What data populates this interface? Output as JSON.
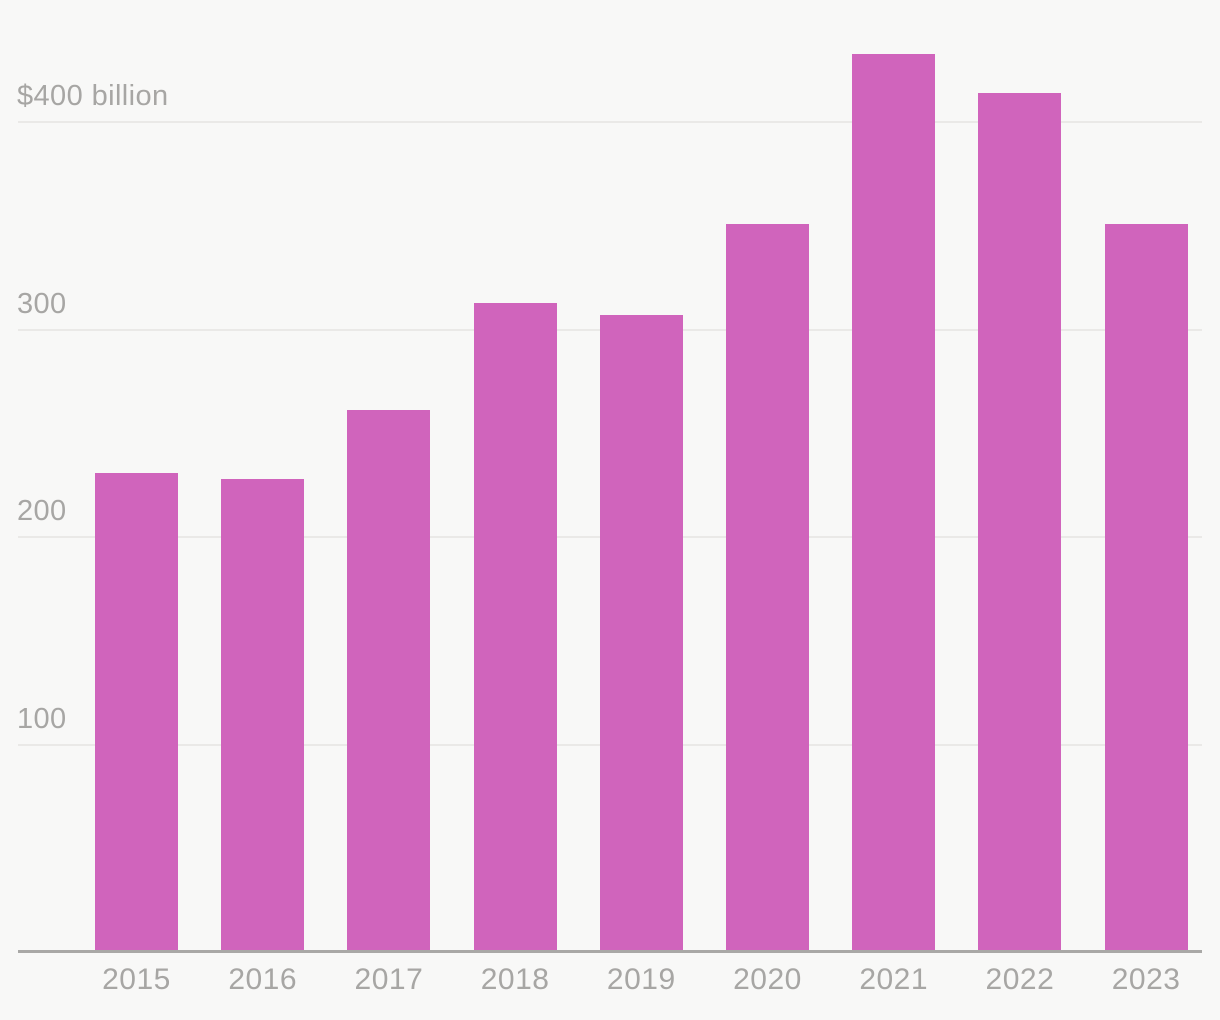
{
  "chart_data": {
    "type": "bar",
    "title": "",
    "xlabel": "",
    "ylabel": "",
    "categories": [
      "2015",
      "2016",
      "2017",
      "2018",
      "2019",
      "2020",
      "2021",
      "2022",
      "2023"
    ],
    "values": [
      231,
      228,
      261,
      313,
      307,
      351,
      433,
      414,
      351
    ],
    "y_ticks": [
      {
        "label": "$400 billion",
        "value": 400
      },
      {
        "label": "300",
        "value": 300
      },
      {
        "label": "200",
        "value": 200
      },
      {
        "label": "100",
        "value": 100
      }
    ],
    "ylim": [
      0,
      459
    ],
    "grid": "horizontal",
    "legend": "none",
    "bar_color": "#d064bc",
    "background_color": "#f8f8f7",
    "gridline_color": "#eae9e7",
    "axis_line_color": "#a9a8a6",
    "tick_label_color": "#a7a6a4"
  }
}
